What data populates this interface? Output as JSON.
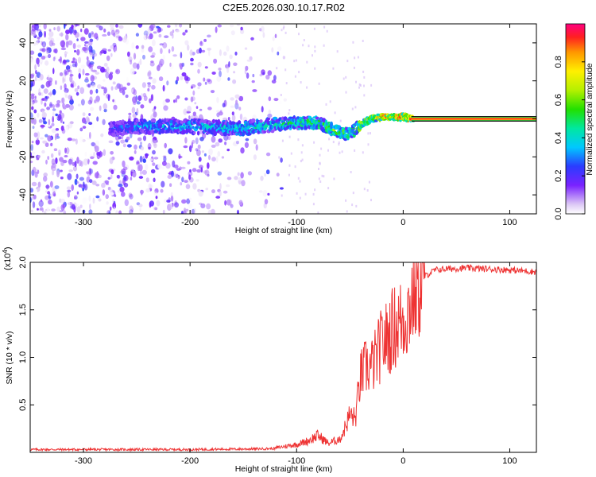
{
  "title": "C2E5.2026.030.10.17.R02",
  "chart_data": [
    {
      "type": "heatmap",
      "xlabel": "Height of straight line (km)",
      "ylabel": "Frequency (Hz)",
      "xlim": [
        -350,
        125
      ],
      "ylim": [
        -50,
        50
      ],
      "xticks": [
        -300,
        -200,
        -100,
        0,
        100
      ],
      "yticks": [
        -40,
        -20,
        0,
        20,
        40
      ],
      "colorbar": {
        "label": "Normalized spectral amplitude",
        "range": [
          0,
          1
        ],
        "ticks": [
          0.0,
          0.2,
          0.4,
          0.6,
          0.8
        ]
      },
      "signal_trace": {
        "description_values_x_km": [
          -270,
          -250,
          -200,
          -150,
          -120,
          -100,
          -80,
          -60,
          -50,
          -40,
          -30,
          -20,
          -10,
          0,
          10,
          125
        ],
        "description_values_freq_hz": [
          -5,
          -4,
          -4,
          -5,
          -3,
          -2,
          -2,
          -7,
          -8,
          -3,
          0,
          1,
          1,
          1,
          0,
          0
        ],
        "amplitude": [
          0.3,
          0.35,
          0.4,
          0.45,
          0.45,
          0.5,
          0.55,
          0.6,
          0.55,
          0.7,
          0.8,
          0.85,
          0.9,
          0.9,
          0.95,
          0.95
        ]
      },
      "noise_region_x_km": [
        -350,
        -120
      ]
    },
    {
      "type": "line",
      "xlabel": "Height of straight line (km)",
      "ylabel": "SNR (10 * v/v)",
      "y_multiplier_label": "(x10",
      "y_multiplier_exp": "4",
      "y_multiplier_close": ")",
      "xlim": [
        -350,
        125
      ],
      "ylim": [
        0,
        20000
      ],
      "xticks": [
        -300,
        -200,
        -100,
        0,
        100
      ],
      "yticks": [
        5000,
        10000,
        15000,
        20000
      ],
      "ytick_labels": [
        "0.5",
        "1.0",
        "1.5",
        "2.0"
      ],
      "color": "#ee3333",
      "series": [
        {
          "x": [
            -350,
            -300,
            -250,
            -200,
            -150,
            -120,
            -100,
            -90,
            -80,
            -70,
            -60,
            -55,
            -50,
            -45,
            -40,
            -35,
            -30,
            -25,
            -20,
            -15,
            -10,
            -5,
            0,
            5,
            10,
            20,
            30,
            40,
            60,
            80,
            100,
            125
          ],
          "y": [
            300,
            300,
            300,
            300,
            350,
            400,
            700,
            1000,
            1500,
            800,
            1200,
            2500,
            4000,
            3500,
            8000,
            9000,
            9000,
            10000,
            11500,
            12000,
            13000,
            13500,
            14000,
            15000,
            17000,
            18500,
            19200,
            19300,
            19400,
            19300,
            19200,
            19000
          ]
        }
      ]
    }
  ]
}
